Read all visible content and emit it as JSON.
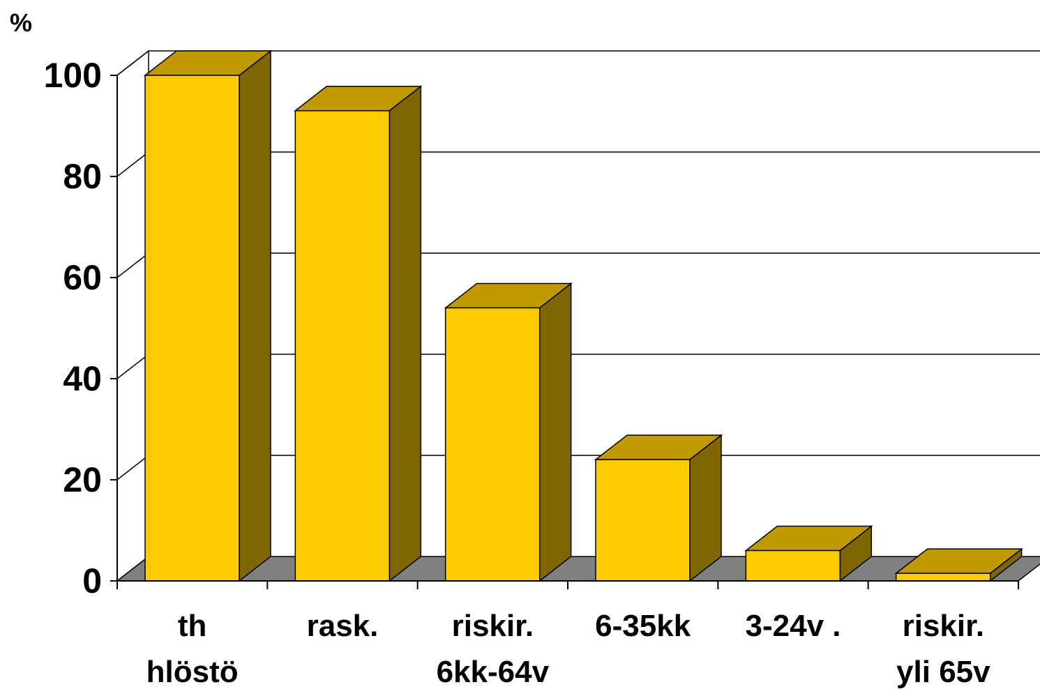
{
  "chart_data": {
    "type": "bar",
    "style": "3d-column",
    "ylabel": "%",
    "ylim": [
      0,
      100
    ],
    "yticks": [
      0,
      20,
      40,
      60,
      80,
      100
    ],
    "grid": true,
    "categories": [
      [
        "th",
        "hlöstö"
      ],
      [
        "rask."
      ],
      [
        "riskir.",
        "6kk-64v"
      ],
      [
        "6-35kk"
      ],
      [
        "3-24v ."
      ],
      [
        "riskir.",
        "yli 65v"
      ]
    ],
    "values": [
      100,
      93,
      54,
      24,
      6,
      1.5
    ],
    "colors": {
      "front": "#FFCC00",
      "top": "#C09A00",
      "side": "#806600",
      "floor": "#808080",
      "grid": "#000000"
    }
  }
}
